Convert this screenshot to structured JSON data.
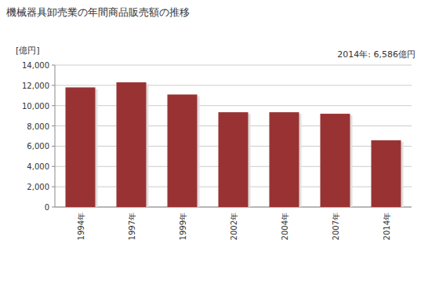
{
  "chart_data": {
    "type": "bar",
    "title": "機械器具卸売業の年間商品販売額の推移",
    "y_label": "[億円]",
    "annotation": "2014年: 6,586億円",
    "categories": [
      "1994年",
      "1997年",
      "1999年",
      "2002年",
      "2004年",
      "2007年",
      "2014年"
    ],
    "values": [
      11800,
      12300,
      11100,
      9350,
      9350,
      9200,
      6586
    ],
    "color": "#993333",
    "ylim": [
      0,
      14000
    ],
    "yticks": [
      0,
      {
        "value": 2000,
        "label": "2,000"
      },
      {
        "value": 4000,
        "label": "4,000"
      },
      {
        "value": 6000,
        "label": "6,000"
      },
      {
        "value": 8000,
        "label": "8,000"
      },
      {
        "value": 10000,
        "label": "10,000"
      },
      {
        "value": 12000,
        "label": "12,000"
      },
      {
        "value": 14000,
        "label": "14,000"
      }
    ],
    "grid": true
  }
}
